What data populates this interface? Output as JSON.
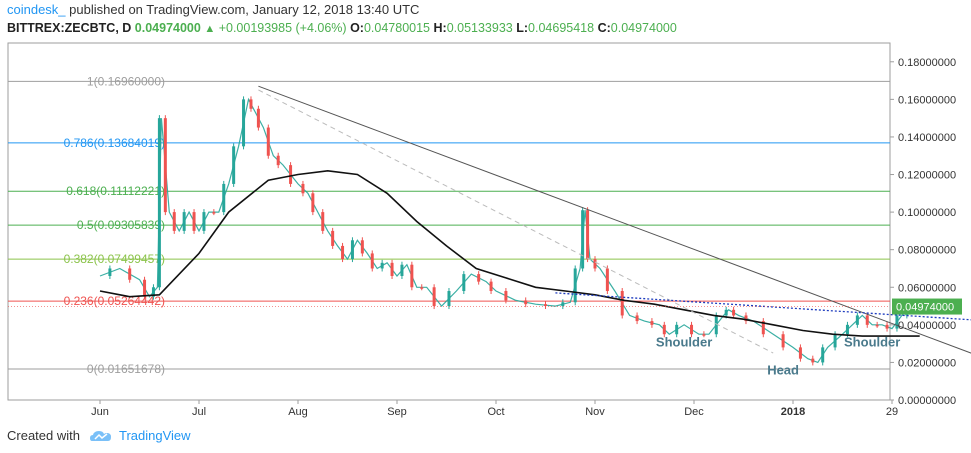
{
  "header": {
    "author": "coindesk_",
    "published": "published on TradingView.com, January 12, 2018 13:40 UTC",
    "symbol": "BITTREX:ZECBTC, D",
    "last": "0.04974000",
    "change": "+0.00193985 (+4.06%)",
    "open_label": "O:",
    "open": "0.04780015",
    "high_label": "H:",
    "high": "0.05133933",
    "low_label": "L:",
    "low": "0.04695418",
    "close_label": "C:",
    "close": "0.04974000"
  },
  "footer": {
    "created": "Created with",
    "brand": "TradingView"
  },
  "colors": {
    "up": "#26a69a",
    "down": "#ef5350",
    "accent": "#2196f3",
    "text_up": "#4caf50"
  },
  "chart_data": {
    "type": "candlestick",
    "ylim": [
      0,
      0.19
    ],
    "y_ticks": [
      "0.18000000",
      "0.16000000",
      "0.14000000",
      "0.12000000",
      "0.10000000",
      "0.08000000",
      "0.06000000",
      "0.04000000",
      "0.02000000",
      "0.00000000"
    ],
    "x_ticks": [
      "Jun",
      "Jul",
      "Aug",
      "Sep",
      "Oct",
      "Nov",
      "Dec",
      "2018",
      "29"
    ],
    "price_label": "0.04974000",
    "fib_levels": [
      {
        "label": "1(0.16960000)",
        "value": 0.1696,
        "color": "#9e9e9e"
      },
      {
        "label": "0.786(0.13684019)",
        "value": 0.13684019,
        "color": "#2196f3"
      },
      {
        "label": "0.618(0.11112221)",
        "value": 0.11112221,
        "color": "#4caf50"
      },
      {
        "label": "0.5(0.09305839)",
        "value": 0.09305839,
        "color": "#4caf50"
      },
      {
        "label": "0.382(0.07499457)",
        "value": 0.07499457,
        "color": "#8bc34a"
      },
      {
        "label": "0.236(0.05264442)",
        "value": 0.05264442,
        "color": "#ef5350"
      },
      {
        "label": "0(0.01651678)",
        "value": 0.01651678,
        "color": "#9e9e9e"
      }
    ],
    "annotations": [
      {
        "text": "Shoulder",
        "x_month": 5.9,
        "y": 0.0285
      },
      {
        "text": "Head",
        "x_month": 6.9,
        "y": 0.0135
      },
      {
        "text": "Shoulder",
        "x_month": 7.8,
        "y": 0.0285
      }
    ],
    "price_path": [
      [
        0,
        0.066
      ],
      [
        0.2,
        0.07
      ],
      [
        0.4,
        0.064
      ],
      [
        0.5,
        0.055
      ],
      [
        0.58,
        0.06
      ],
      [
        0.62,
        0.15
      ],
      [
        0.7,
        0.1
      ],
      [
        0.8,
        0.09
      ],
      [
        0.9,
        0.1
      ],
      [
        1.0,
        0.09
      ],
      [
        1.1,
        0.1
      ],
      [
        1.2,
        0.1
      ],
      [
        1.3,
        0.115
      ],
      [
        1.4,
        0.135
      ],
      [
        1.5,
        0.16
      ],
      [
        1.55,
        0.155
      ],
      [
        1.65,
        0.145
      ],
      [
        1.75,
        0.13
      ],
      [
        1.85,
        0.125
      ],
      [
        2.0,
        0.115
      ],
      [
        2.1,
        0.11
      ],
      [
        2.2,
        0.1
      ],
      [
        2.3,
        0.09
      ],
      [
        2.4,
        0.082
      ],
      [
        2.5,
        0.075
      ],
      [
        2.6,
        0.085
      ],
      [
        2.7,
        0.078
      ],
      [
        2.8,
        0.07
      ],
      [
        2.9,
        0.073
      ],
      [
        3.0,
        0.066
      ],
      [
        3.1,
        0.072
      ],
      [
        3.2,
        0.06
      ],
      [
        3.3,
        0.06
      ],
      [
        3.45,
        0.05
      ],
      [
        3.6,
        0.058
      ],
      [
        3.75,
        0.067
      ],
      [
        3.9,
        0.063
      ],
      [
        4.0,
        0.058
      ],
      [
        4.2,
        0.053
      ],
      [
        4.4,
        0.051
      ],
      [
        4.6,
        0.05
      ],
      [
        4.75,
        0.052
      ],
      [
        4.85,
        0.07
      ],
      [
        4.9,
        0.101
      ],
      [
        4.95,
        0.075
      ],
      [
        5.05,
        0.07
      ],
      [
        5.2,
        0.058
      ],
      [
        5.35,
        0.045
      ],
      [
        5.5,
        0.042
      ],
      [
        5.65,
        0.04
      ],
      [
        5.75,
        0.035
      ],
      [
        5.9,
        0.04
      ],
      [
        6.05,
        0.035
      ],
      [
        6.15,
        0.035
      ],
      [
        6.3,
        0.045
      ],
      [
        6.35,
        0.048
      ],
      [
        6.45,
        0.045
      ],
      [
        6.6,
        0.042
      ],
      [
        6.8,
        0.035
      ],
      [
        7.0,
        0.028
      ],
      [
        7.15,
        0.022
      ],
      [
        7.25,
        0.02
      ],
      [
        7.35,
        0.028
      ],
      [
        7.5,
        0.035
      ],
      [
        7.6,
        0.04
      ],
      [
        7.7,
        0.045
      ],
      [
        7.8,
        0.04
      ],
      [
        7.9,
        0.04
      ],
      [
        8.0,
        0.038
      ],
      [
        8.1,
        0.045
      ],
      [
        8.2,
        0.05
      ],
      [
        8.28,
        0.051
      ]
    ],
    "ma_line": [
      [
        0,
        0.058
      ],
      [
        0.3,
        0.055
      ],
      [
        0.6,
        0.056
      ],
      [
        1.0,
        0.078
      ],
      [
        1.3,
        0.1
      ],
      [
        1.7,
        0.117
      ],
      [
        2.0,
        0.12
      ],
      [
        2.3,
        0.122
      ],
      [
        2.6,
        0.12
      ],
      [
        2.9,
        0.11
      ],
      [
        3.2,
        0.095
      ],
      [
        3.5,
        0.082
      ],
      [
        3.8,
        0.07
      ],
      [
        4.1,
        0.065
      ],
      [
        4.4,
        0.06
      ],
      [
        4.7,
        0.058
      ],
      [
        5.0,
        0.056
      ],
      [
        5.3,
        0.053
      ],
      [
        5.6,
        0.051
      ],
      [
        5.9,
        0.048
      ],
      [
        6.2,
        0.045
      ],
      [
        6.5,
        0.043
      ],
      [
        6.8,
        0.04
      ],
      [
        7.1,
        0.037
      ],
      [
        7.4,
        0.035
      ],
      [
        7.7,
        0.034
      ],
      [
        8.0,
        0.034
      ],
      [
        8.28,
        0.034
      ]
    ],
    "trend_lines": [
      {
        "from": [
          1.6,
          0.167
        ],
        "to": [
          9.0,
          0.021
        ],
        "style": "solid",
        "color": "#555555"
      },
      {
        "from": [
          1.6,
          0.165
        ],
        "to": [
          6.8,
          0.025
        ],
        "style": "dashed",
        "color": "#bbbbbb"
      },
      {
        "from": [
          4.6,
          0.057
        ],
        "to": [
          9.0,
          0.042
        ],
        "style": "dotted",
        "color": "#1e3cbe"
      }
    ]
  }
}
